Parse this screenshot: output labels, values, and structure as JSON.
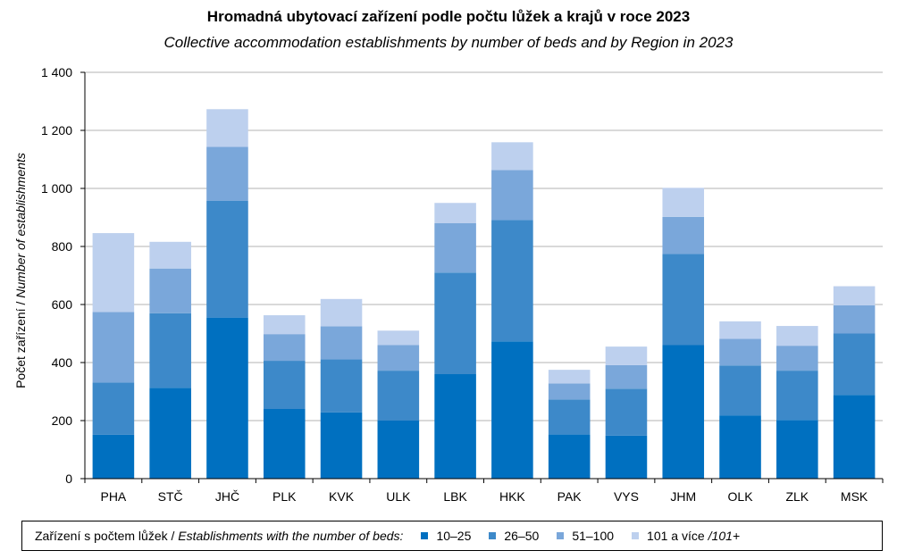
{
  "title": "Hromadná ubytovací zařízení podle počtu lůžek a krajů v roce 2023",
  "subtitle": "Collective accommodation establishments by number of beds and by Region in 2023",
  "chart_data": {
    "type": "bar",
    "stacked": true,
    "title": "Hromadná ubytovací zařízení podle počtu lůžek a krajů v roce 2023",
    "subtitle": "Collective accommodation establishments by number of beds and by Region in 2023",
    "xlabel": "",
    "ylabel": "Počet zařízení / Number of establishments",
    "ylabel_cs": "Počet zařízení",
    "ylabel_sep": " / ",
    "ylabel_en": "Number of establishments",
    "ylim": [
      0,
      1400
    ],
    "yticks": [
      0,
      200,
      400,
      600,
      800,
      1000,
      1200,
      1400
    ],
    "ytick_labels": [
      "0",
      "200",
      "400",
      "600",
      "800",
      "1 000",
      "1 200",
      "1 400"
    ],
    "grid": true,
    "legend_position": "bottom",
    "categories": [
      "PHA",
      "STČ",
      "JHČ",
      "PLK",
      "KVK",
      "ULK",
      "LBK",
      "HKK",
      "PAK",
      "VYS",
      "JHM",
      "OLK",
      "ZLK",
      "MSK"
    ],
    "series": [
      {
        "name": "10–25",
        "color": "#0070c0",
        "values": [
          151,
          313,
          555,
          240,
          228,
          200,
          360,
          473,
          152,
          148,
          460,
          218,
          202,
          288
        ]
      },
      {
        "name": "26–50",
        "color": "#3d89c9",
        "values": [
          180,
          257,
          402,
          166,
          183,
          172,
          350,
          418,
          121,
          162,
          314,
          172,
          170,
          212
        ]
      },
      {
        "name": "51–100",
        "color": "#7aa7da",
        "values": [
          243,
          154,
          186,
          92,
          114,
          88,
          170,
          172,
          55,
          81,
          128,
          92,
          86,
          97
        ]
      },
      {
        "name": "101 a více",
        "name_suffix": "/101+",
        "color": "#bdd0ee",
        "values": [
          272,
          92,
          130,
          65,
          94,
          50,
          70,
          96,
          47,
          64,
          100,
          60,
          68,
          66
        ]
      }
    ]
  },
  "legend": {
    "caption_cs": "Zařízení s počtem lůžek",
    "caption_sep": " / ",
    "caption_en": "Establishments with the number of beds:"
  },
  "colors": {
    "gridline": "#b3b3b3",
    "axis": "#000000"
  }
}
